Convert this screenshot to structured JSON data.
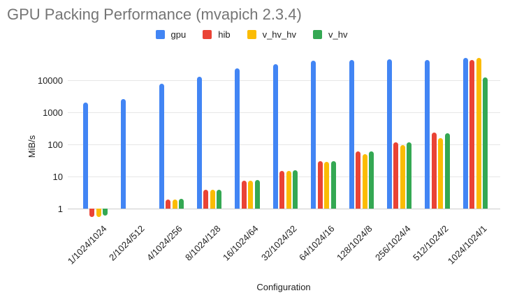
{
  "chart_data": {
    "type": "bar",
    "title": "GPU Packing Performance (mvapich 2.3.4)",
    "xlabel": "Configuration",
    "ylabel": "MiB/s",
    "y_scale": "log",
    "y_ticks": [
      1,
      10,
      100,
      1000,
      10000
    ],
    "ylim": [
      0.45,
      60000
    ],
    "grid": true,
    "legend_position": "top",
    "categories": [
      "1/1024/1024",
      "2/1024/512",
      "4/1024/256",
      "8/1024/128",
      "16/1024/64",
      "32/1024/32",
      "64/1024/16",
      "128/1024/8",
      "256/1024/4",
      "512/1024/2",
      "1024/1024/1"
    ],
    "series": [
      {
        "name": "gpu",
        "color": "#4285F4",
        "values": [
          2100,
          2700,
          8000,
          13000,
          24000,
          33000,
          41000,
          43000,
          47000,
          43000,
          50000
        ]
      },
      {
        "name": "hib",
        "color": "#EA4335",
        "values": [
          0.55,
          null,
          1.9,
          3.8,
          7.5,
          15,
          30,
          60,
          120,
          235,
          43000
        ]
      },
      {
        "name": "v_hv_hv",
        "color": "#FBBC04",
        "values": [
          0.55,
          null,
          1.9,
          3.8,
          7.5,
          15,
          29,
          50,
          95,
          160,
          52000
        ]
      },
      {
        "name": "v_hv",
        "color": "#34A853",
        "values": [
          0.6,
          null,
          2.0,
          3.9,
          7.8,
          15.5,
          31,
          60,
          120,
          220,
          12200
        ]
      }
    ]
  }
}
